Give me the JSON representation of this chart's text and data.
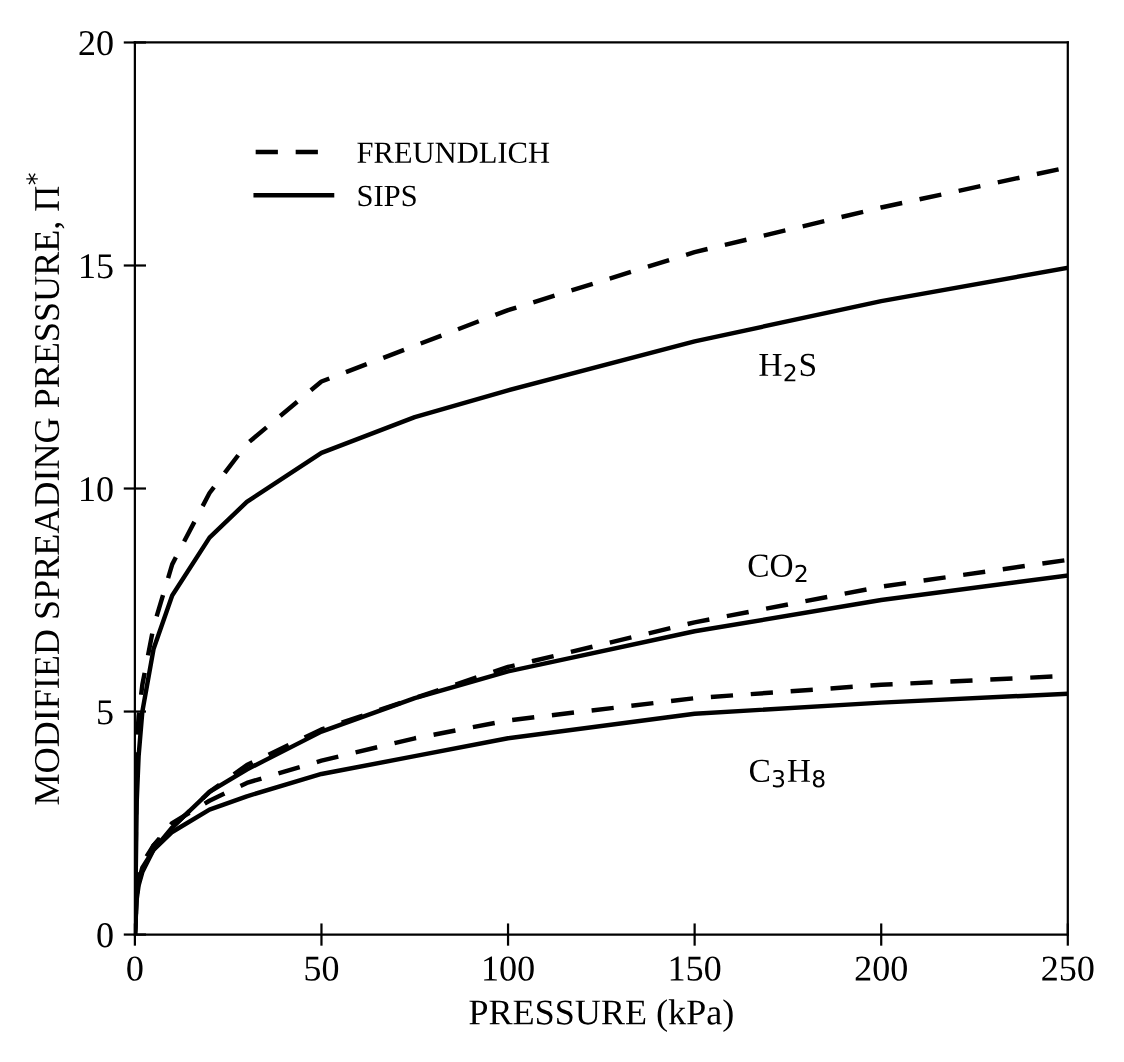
{
  "chart_data": {
    "type": "line",
    "xlabel": "PRESSURE (kPa)",
    "ylabel": "MODIFIED SPREADING PRESSURE, Π$^{*}$",
    "x": [
      0,
      0.5,
      1,
      2,
      5,
      10,
      20,
      30,
      50,
      75,
      100,
      150,
      200,
      250
    ],
    "series": [
      {
        "name": "FREUNDLICH",
        "color": "#000000",
        "line_style": "dashed",
        "values": [
          0,
          4.2,
          4.9,
          5.6,
          6.9,
          8.3,
          9.9,
          11.0,
          12.4,
          13.2,
          14.0,
          15.3,
          16.3,
          17.2
        ]
      },
      {
        "name": "SIPS",
        "color": "#000000",
        "line_style": "solid",
        "values": [
          0,
          3.0,
          4.0,
          5.0,
          6.4,
          7.6,
          8.9,
          9.7,
          10.8,
          11.6,
          12.2,
          13.3,
          14.2,
          14.95
        ]
      },
      {
        "color": "#000000",
        "line_style": "dashed",
        "values": [
          0,
          0.9,
          1.2,
          1.5,
          2.0,
          2.4,
          3.2,
          3.8,
          4.6,
          5.3,
          6.0,
          7.0,
          7.8,
          8.4
        ]
      },
      {
        "color": "#000000",
        "line_style": "solid",
        "values": [
          0,
          0.8,
          1.1,
          1.4,
          1.9,
          2.4,
          3.2,
          3.7,
          4.55,
          5.3,
          5.9,
          6.8,
          7.5,
          8.05
        ]
      },
      {
        "color": "#000000",
        "line_style": "dashed",
        "values": [
          0,
          1.0,
          1.3,
          1.6,
          2.0,
          2.5,
          3.0,
          3.4,
          3.9,
          4.4,
          4.8,
          5.3,
          5.6,
          5.8
        ]
      },
      {
        "color": "#000000",
        "line_style": "solid",
        "values": [
          0,
          0.9,
          1.2,
          1.5,
          1.9,
          2.3,
          2.8,
          3.1,
          3.6,
          4.0,
          4.4,
          4.95,
          5.2,
          5.4
        ]
      }
    ],
    "annotations": [
      "H$_{2}$S",
      "CO$_{2}$",
      "C$_{3}$H$_{8}$"
    ],
    "xlim": [
      0,
      250
    ],
    "xticks": [
      0,
      50,
      100,
      150,
      200,
      250
    ],
    "ylim": [
      0,
      20
    ],
    "yticks": [
      0,
      5,
      10,
      15,
      20
    ],
    "grid": false,
    "legend": "top left",
    "marker": "none"
  }
}
